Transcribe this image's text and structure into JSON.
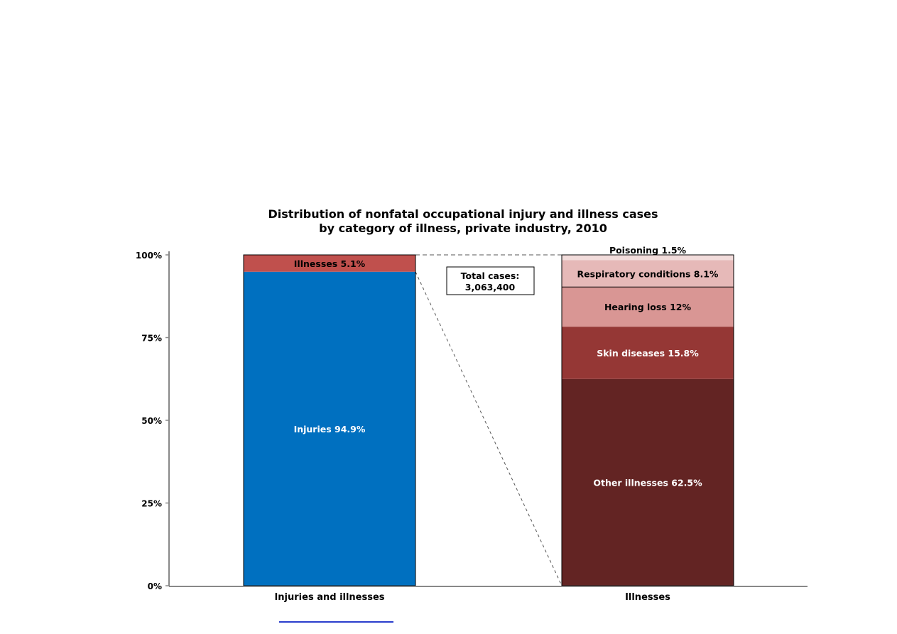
{
  "chart_data": {
    "type": "bar",
    "stacked": true,
    "title": "Distribution of nonfatal occupational injury and illness cases",
    "subtitle": "by category of illness, private industry, 2010",
    "categories": [
      "Injuries and illnesses",
      "Illnesses"
    ],
    "y_ticks": [
      "0%",
      "25%",
      "50%",
      "75%",
      "100%"
    ],
    "ylim": [
      0,
      100
    ],
    "grid": false,
    "bars": [
      {
        "category": "Injuries and illnesses",
        "segments": [
          {
            "label": "Injuries 94.9%",
            "value": 94.9,
            "color": "#0070c0",
            "text_color": "#ffffff"
          },
          {
            "label": "Illnesses 5.1%",
            "value": 5.1,
            "color": "#c0504d",
            "text_color": "#000000"
          }
        ]
      },
      {
        "category": "Illnesses",
        "segments": [
          {
            "label": "Other illnesses 62.5%",
            "value": 62.5,
            "color": "#632423",
            "text_color": "#ffffff"
          },
          {
            "label": "Skin diseases 15.8%",
            "value": 15.8,
            "color": "#953735",
            "text_color": "#ffffff"
          },
          {
            "label": "Hearing loss 12%",
            "value": 12.0,
            "color": "#d99694",
            "text_color": "#000000"
          },
          {
            "label": "Respiratory conditions 8.1%",
            "value": 8.1,
            "color": "#e6b9b8",
            "text_color": "#000000"
          },
          {
            "label": "Poisoning 1.5%",
            "value": 1.5,
            "color": "#f2dcdb",
            "text_color": "#000000"
          }
        ]
      }
    ],
    "annotation": {
      "lines": [
        "Total cases:",
        "3,063,400"
      ]
    }
  }
}
